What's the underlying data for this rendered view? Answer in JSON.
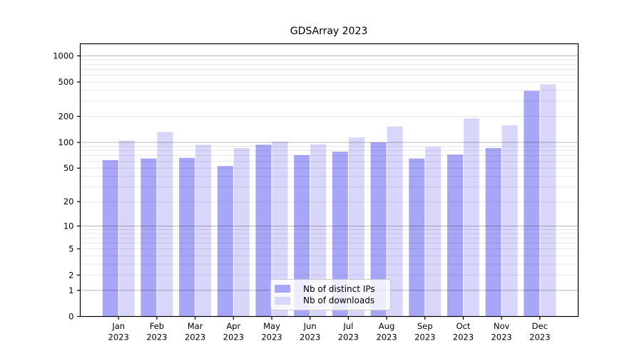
{
  "chart_data": {
    "type": "bar",
    "title": "GDSArray 2023",
    "y_scale": "log10(1+v)",
    "grid": true,
    "legend_position": "bottom-center",
    "categories": [
      "Jan",
      "Feb",
      "Mar",
      "Apr",
      "May",
      "Jun",
      "Jul",
      "Aug",
      "Sep",
      "Oct",
      "Nov",
      "Dec"
    ],
    "x_year_label": "2023",
    "series": [
      {
        "name": "Nb of distinct IPs",
        "color": "#a8a6f7",
        "values": [
          62,
          65,
          66,
          53,
          94,
          71,
          78,
          100,
          65,
          72,
          86,
          395
        ]
      },
      {
        "name": "Nb of downloads",
        "color": "#d8d6fa",
        "values": [
          105,
          132,
          94,
          86,
          102,
          95,
          114,
          153,
          89,
          190,
          158,
          470
        ]
      }
    ],
    "yticks": [
      0,
      1,
      2,
      5,
      10,
      20,
      50,
      100,
      200,
      500,
      1000
    ],
    "ylim": [
      0,
      1350
    ],
    "colors": {
      "major_grid": "rgba(0,0,0,0.28)",
      "minor_grid": "rgba(0,0,0,0.09)",
      "axis": "#000000",
      "background": "#ffffff"
    }
  }
}
